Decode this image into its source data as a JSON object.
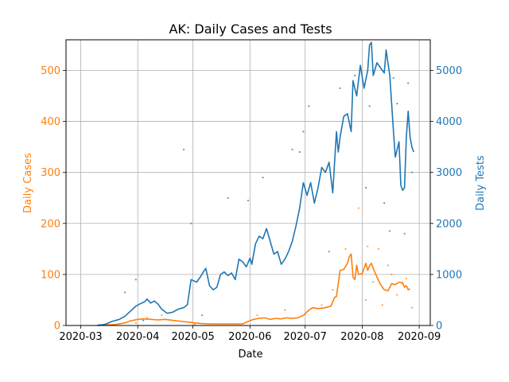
{
  "chart_data": {
    "type": "line",
    "title": "AK: Daily Cases and Tests",
    "xlabel": "Date",
    "ylabel_left": "Daily Cases",
    "ylabel_right": "Daily Tests",
    "x_ticks": [
      "2020-03",
      "2020-04",
      "2020-05",
      "2020-06",
      "2020-07",
      "2020-08",
      "2020-09"
    ],
    "x_range": [
      "2020-02-22",
      "2020-09-07"
    ],
    "left_axis": {
      "range": [
        0,
        560
      ],
      "ticks": [
        0,
        100,
        200,
        300,
        400,
        500
      ],
      "color": "#ff7f0e"
    },
    "right_axis": {
      "range": [
        0,
        5600
      ],
      "ticks": [
        0,
        1000,
        2000,
        3000,
        4000,
        5000
      ],
      "color": "#1f77b4"
    },
    "grid": true,
    "series": [
      {
        "axis": "left",
        "color": "#ff7f0e",
        "points": [
          [
            "2020-03-10",
            0
          ],
          [
            "2020-03-15",
            1
          ],
          [
            "2020-03-20",
            2
          ],
          [
            "2020-03-25",
            5
          ],
          [
            "2020-03-28",
            9
          ],
          [
            "2020-04-01",
            12
          ],
          [
            "2020-04-04",
            13
          ],
          [
            "2020-04-08",
            12
          ],
          [
            "2020-04-12",
            11
          ],
          [
            "2020-04-16",
            12
          ],
          [
            "2020-04-20",
            10
          ],
          [
            "2020-04-25",
            8
          ],
          [
            "2020-04-30",
            6
          ],
          [
            "2020-05-05",
            4
          ],
          [
            "2020-05-10",
            3
          ],
          [
            "2020-05-15",
            3
          ],
          [
            "2020-05-20",
            3
          ],
          [
            "2020-05-25",
            3
          ],
          [
            "2020-05-28",
            3
          ],
          [
            "2020-05-31",
            8
          ],
          [
            "2020-06-03",
            12
          ],
          [
            "2020-06-06",
            14
          ],
          [
            "2020-06-09",
            15
          ],
          [
            "2020-06-12",
            12
          ],
          [
            "2020-06-15",
            14
          ],
          [
            "2020-06-18",
            13
          ],
          [
            "2020-06-21",
            15
          ],
          [
            "2020-06-24",
            14
          ],
          [
            "2020-06-27",
            15
          ],
          [
            "2020-06-30",
            20
          ],
          [
            "2020-07-03",
            30
          ],
          [
            "2020-07-05",
            35
          ],
          [
            "2020-07-08",
            33
          ],
          [
            "2020-07-12",
            35
          ],
          [
            "2020-07-15",
            38
          ],
          [
            "2020-07-17",
            55
          ],
          [
            "2020-07-18",
            57
          ],
          [
            "2020-07-20",
            108
          ],
          [
            "2020-07-22",
            110
          ],
          [
            "2020-07-24",
            122
          ],
          [
            "2020-07-25",
            135
          ],
          [
            "2020-07-26",
            140
          ],
          [
            "2020-07-27",
            95
          ],
          [
            "2020-07-28",
            90
          ],
          [
            "2020-07-29",
            118
          ],
          [
            "2020-07-30",
            100
          ],
          [
            "2020-08-01",
            102
          ],
          [
            "2020-08-03",
            122
          ],
          [
            "2020-08-04",
            108
          ],
          [
            "2020-08-05",
            117
          ],
          [
            "2020-08-06",
            122
          ],
          [
            "2020-08-07",
            112
          ],
          [
            "2020-08-09",
            95
          ],
          [
            "2020-08-11",
            80
          ],
          [
            "2020-08-13",
            70
          ],
          [
            "2020-08-15",
            68
          ],
          [
            "2020-08-17",
            82
          ],
          [
            "2020-08-19",
            80
          ],
          [
            "2020-08-21",
            85
          ],
          [
            "2020-08-23",
            84
          ],
          [
            "2020-08-24",
            75
          ],
          [
            "2020-08-25",
            78
          ],
          [
            "2020-08-26",
            70
          ],
          [
            "2020-08-27",
            72
          ]
        ],
        "scatter": [
          [
            "2020-03-31",
            5
          ],
          [
            "2020-04-06",
            15
          ],
          [
            "2020-04-14",
            20
          ],
          [
            "2020-05-02",
            2
          ],
          [
            "2020-06-05",
            20
          ],
          [
            "2020-06-20",
            30
          ],
          [
            "2020-07-01",
            22
          ],
          [
            "2020-07-10",
            40
          ],
          [
            "2020-07-16",
            70
          ],
          [
            "2020-07-23",
            150
          ],
          [
            "2020-07-30",
            230
          ],
          [
            "2020-08-03",
            50
          ],
          [
            "2020-08-04",
            155
          ],
          [
            "2020-08-07",
            85
          ],
          [
            "2020-08-10",
            150
          ],
          [
            "2020-08-12",
            40
          ],
          [
            "2020-08-15",
            118
          ],
          [
            "2020-08-17",
            100
          ],
          [
            "2020-08-20",
            60
          ],
          [
            "2020-08-23",
            82
          ],
          [
            "2020-08-25",
            92
          ],
          [
            "2020-08-28",
            35
          ]
        ]
      },
      {
        "axis": "right",
        "color": "#1f77b4",
        "points": [
          [
            "2020-03-10",
            5
          ],
          [
            "2020-03-14",
            20
          ],
          [
            "2020-03-18",
            80
          ],
          [
            "2020-03-22",
            120
          ],
          [
            "2020-03-25",
            180
          ],
          [
            "2020-03-28",
            280
          ],
          [
            "2020-03-31",
            380
          ],
          [
            "2020-04-02",
            420
          ],
          [
            "2020-04-05",
            470
          ],
          [
            "2020-04-06",
            520
          ],
          [
            "2020-04-08",
            440
          ],
          [
            "2020-04-10",
            480
          ],
          [
            "2020-04-12",
            420
          ],
          [
            "2020-04-14",
            320
          ],
          [
            "2020-04-17",
            240
          ],
          [
            "2020-04-20",
            260
          ],
          [
            "2020-04-23",
            320
          ],
          [
            "2020-04-26",
            350
          ],
          [
            "2020-04-28",
            410
          ],
          [
            "2020-04-30",
            900
          ],
          [
            "2020-05-03",
            850
          ],
          [
            "2020-05-05",
            950
          ],
          [
            "2020-05-07",
            1070
          ],
          [
            "2020-05-08",
            1120
          ],
          [
            "2020-05-10",
            780
          ],
          [
            "2020-05-12",
            700
          ],
          [
            "2020-05-14",
            750
          ],
          [
            "2020-05-16",
            1000
          ],
          [
            "2020-05-18",
            1050
          ],
          [
            "2020-05-20",
            980
          ],
          [
            "2020-05-22",
            1030
          ],
          [
            "2020-05-24",
            900
          ],
          [
            "2020-05-26",
            1300
          ],
          [
            "2020-05-28",
            1250
          ],
          [
            "2020-05-30",
            1150
          ],
          [
            "2020-06-01",
            1320
          ],
          [
            "2020-06-02",
            1200
          ],
          [
            "2020-06-04",
            1600
          ],
          [
            "2020-06-06",
            1750
          ],
          [
            "2020-06-08",
            1700
          ],
          [
            "2020-06-10",
            1900
          ],
          [
            "2020-06-12",
            1650
          ],
          [
            "2020-06-14",
            1400
          ],
          [
            "2020-06-16",
            1450
          ],
          [
            "2020-06-18",
            1200
          ],
          [
            "2020-06-20",
            1300
          ],
          [
            "2020-06-22",
            1450
          ],
          [
            "2020-06-24",
            1650
          ],
          [
            "2020-06-26",
            1950
          ],
          [
            "2020-06-28",
            2300
          ],
          [
            "2020-06-30",
            2800
          ],
          [
            "2020-07-02",
            2550
          ],
          [
            "2020-07-04",
            2800
          ],
          [
            "2020-07-06",
            2400
          ],
          [
            "2020-07-08",
            2700
          ],
          [
            "2020-07-10",
            3100
          ],
          [
            "2020-07-12",
            3000
          ],
          [
            "2020-07-14",
            3200
          ],
          [
            "2020-07-16",
            2600
          ],
          [
            "2020-07-18",
            3800
          ],
          [
            "2020-07-19",
            3400
          ],
          [
            "2020-07-20",
            3700
          ],
          [
            "2020-07-22",
            4100
          ],
          [
            "2020-07-24",
            4150
          ],
          [
            "2020-07-26",
            3800
          ],
          [
            "2020-07-27",
            4800
          ],
          [
            "2020-07-29",
            4500
          ],
          [
            "2020-07-31",
            5100
          ],
          [
            "2020-08-02",
            4650
          ],
          [
            "2020-08-04",
            5000
          ],
          [
            "2020-08-05",
            5500
          ],
          [
            "2020-08-06",
            5550
          ],
          [
            "2020-08-07",
            4900
          ],
          [
            "2020-08-09",
            5150
          ],
          [
            "2020-08-11",
            5050
          ],
          [
            "2020-08-13",
            4950
          ],
          [
            "2020-08-14",
            5400
          ],
          [
            "2020-08-16",
            4900
          ],
          [
            "2020-08-18",
            3800
          ],
          [
            "2020-08-19",
            3300
          ],
          [
            "2020-08-21",
            3600
          ],
          [
            "2020-08-22",
            2750
          ],
          [
            "2020-08-23",
            2650
          ],
          [
            "2020-08-24",
            2700
          ],
          [
            "2020-08-25",
            3700
          ],
          [
            "2020-08-26",
            4200
          ],
          [
            "2020-08-27",
            3700
          ],
          [
            "2020-08-28",
            3500
          ],
          [
            "2020-08-29",
            3400
          ]
        ],
        "scatter": [
          [
            "2020-03-25",
            650
          ],
          [
            "2020-03-31",
            900
          ],
          [
            "2020-04-04",
            100
          ],
          [
            "2020-04-26",
            3450
          ],
          [
            "2020-04-30",
            2000
          ],
          [
            "2020-05-06",
            200
          ],
          [
            "2020-05-20",
            2500
          ],
          [
            "2020-05-31",
            2450
          ],
          [
            "2020-06-08",
            2900
          ],
          [
            "2020-06-24",
            3450
          ],
          [
            "2020-06-28",
            3400
          ],
          [
            "2020-06-30",
            3800
          ],
          [
            "2020-07-03",
            4300
          ],
          [
            "2020-07-14",
            1450
          ],
          [
            "2020-07-20",
            4650
          ],
          [
            "2020-07-28",
            4900
          ],
          [
            "2020-08-03",
            2700
          ],
          [
            "2020-08-05",
            4300
          ],
          [
            "2020-08-13",
            2400
          ],
          [
            "2020-08-16",
            1850
          ],
          [
            "2020-08-18",
            4850
          ],
          [
            "2020-08-20",
            4350
          ],
          [
            "2020-08-24",
            1800
          ],
          [
            "2020-08-26",
            4750
          ],
          [
            "2020-08-28",
            3000
          ]
        ]
      }
    ]
  }
}
